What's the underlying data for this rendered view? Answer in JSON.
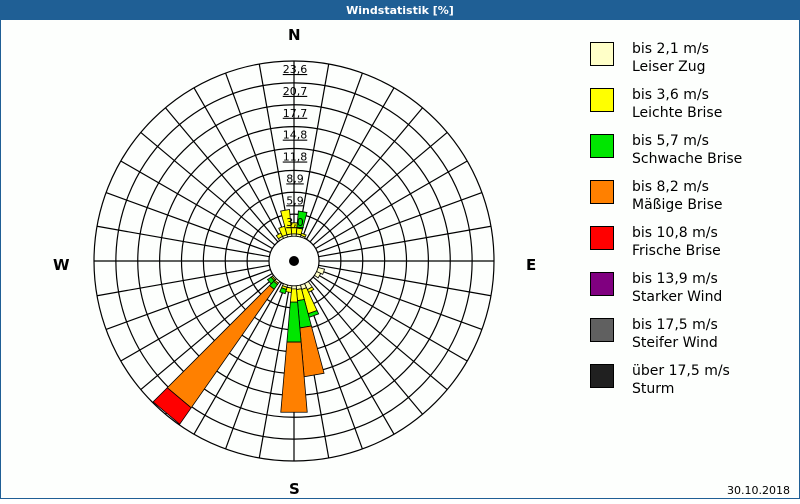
{
  "window": {
    "title": "Windstatistik [%]"
  },
  "footer": {
    "date": "30.10.2018"
  },
  "directions": {
    "n": "N",
    "e": "E",
    "s": "S",
    "w": "W"
  },
  "legend": [
    {
      "line1": "bis 2,1 m/s",
      "line2": "Leiser Zug",
      "color": "#ffffc8"
    },
    {
      "line1": "bis 3,6 m/s",
      "line2": "Leichte Brise",
      "color": "#ffff00"
    },
    {
      "line1": "bis 5,7 m/s",
      "line2": "Schwache Brise",
      "color": "#00e600"
    },
    {
      "line1": "bis 8,2 m/s",
      "line2": "Mäßige Brise",
      "color": "#ff8000"
    },
    {
      "line1": "bis 10,8 m/s",
      "line2": "Frische Brise",
      "color": "#ff0000"
    },
    {
      "line1": "bis 13,9 m/s",
      "line2": "Starker Wind",
      "color": "#800080"
    },
    {
      "line1": "bis 17,5 m/s",
      "line2": "Steifer Wind",
      "color": "#606060"
    },
    {
      "line1": "über 17,5 m/s",
      "line2": "Sturm",
      "color": "#202020"
    }
  ],
  "chart_data": {
    "type": "windrose",
    "title": "Windstatistik [%]",
    "unit": "%",
    "sector_width_deg": 10,
    "radial_ticks": [
      "3,0",
      "5,9",
      "8,9",
      "11,8",
      "14,8",
      "17,7",
      "20,7",
      "23,6"
    ],
    "radial_max": 23.6,
    "classes": [
      "bis 2,1 m/s",
      "bis 3,6 m/s",
      "bis 5,7 m/s",
      "bis 8,2 m/s",
      "bis 10,8 m/s",
      "bis 13,9 m/s",
      "bis 17,5 m/s",
      "über 17,5 m/s"
    ],
    "sectors": [
      {
        "dir": 0,
        "values": [
          0.3,
          1.5,
          0.0,
          0,
          0,
          0,
          0,
          0
        ]
      },
      {
        "dir": 10,
        "values": [
          0.3,
          0.8,
          2.3,
          0,
          0,
          0,
          0,
          0
        ]
      },
      {
        "dir": 20,
        "values": [
          0.2,
          0.3,
          0.0,
          0,
          0,
          0,
          0,
          0
        ]
      },
      {
        "dir": 110,
        "values": [
          0.9,
          0.0,
          0.0,
          0,
          0,
          0,
          0,
          0
        ]
      },
      {
        "dir": 120,
        "values": [
          0.6,
          0.0,
          0.0,
          0,
          0,
          0,
          0,
          0
        ]
      },
      {
        "dir": 150,
        "values": [
          0.9,
          0.4,
          0.0,
          0,
          0,
          0,
          0,
          0
        ]
      },
      {
        "dir": 160,
        "values": [
          0.6,
          3.4,
          0.5,
          0,
          0,
          0,
          0,
          0
        ]
      },
      {
        "dir": 170,
        "values": [
          0.5,
          1.5,
          3.7,
          6.6,
          0,
          0,
          0,
          0
        ]
      },
      {
        "dir": 180,
        "values": [
          0.4,
          1.8,
          5.4,
          9.5,
          0,
          0,
          0,
          0
        ]
      },
      {
        "dir": 190,
        "values": [
          0.3,
          0.6,
          0.0,
          0,
          0,
          0,
          0,
          0
        ]
      },
      {
        "dir": 200,
        "values": [
          0.3,
          0.3,
          0.6,
          0,
          0,
          0,
          0,
          0
        ]
      },
      {
        "dir": 220,
        "values": [
          0.3,
          0.2,
          0.8,
          19.5,
          2.7,
          0,
          0,
          0
        ]
      },
      {
        "dir": 230,
        "values": [
          0.2,
          0.2,
          0.6,
          0,
          0,
          0,
          0,
          0
        ]
      },
      {
        "dir": 330,
        "values": [
          0.3,
          0.5,
          0.0,
          0,
          0,
          0,
          0,
          0
        ]
      },
      {
        "dir": 340,
        "values": [
          0.3,
          1.2,
          0.0,
          0,
          0,
          0,
          0,
          0
        ]
      },
      {
        "dir": 350,
        "values": [
          0.3,
          3.3,
          0.0,
          0,
          0,
          0,
          0,
          0
        ]
      }
    ],
    "legend_position": "right",
    "grid": true
  }
}
